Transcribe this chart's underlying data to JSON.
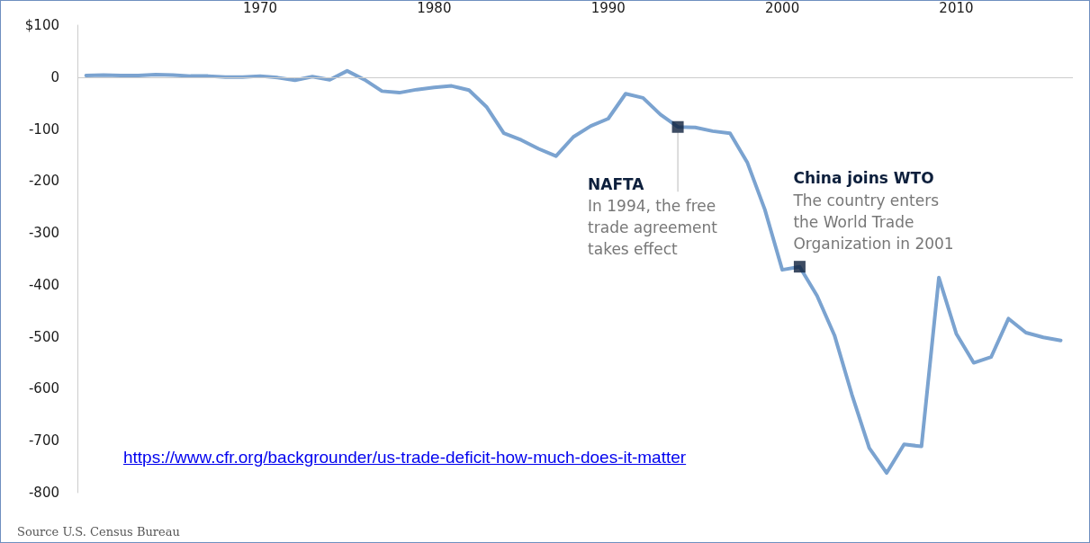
{
  "chart_data": {
    "type": "line",
    "x": [
      1960,
      1961,
      1962,
      1963,
      1964,
      1965,
      1966,
      1967,
      1968,
      1969,
      1970,
      1971,
      1972,
      1973,
      1974,
      1975,
      1976,
      1977,
      1978,
      1979,
      1980,
      1981,
      1982,
      1983,
      1984,
      1985,
      1986,
      1987,
      1988,
      1989,
      1990,
      1991,
      1992,
      1993,
      1994,
      1995,
      1996,
      1997,
      1998,
      1999,
      2000,
      2001,
      2002,
      2003,
      2004,
      2005,
      2006,
      2007,
      2008,
      2009,
      2010,
      2011,
      2012,
      2013,
      2014,
      2015,
      2016
    ],
    "series": [
      {
        "color": "#7ba3d0",
        "values": [
          3,
          4,
          3,
          3,
          5,
          4,
          2,
          2,
          0,
          0,
          2,
          -1,
          -6,
          1,
          -5,
          12,
          -5,
          -27,
          -30,
          -24,
          -20,
          -17,
          -25,
          -57,
          -108,
          -121,
          -138,
          -152,
          -115,
          -94,
          -80,
          -32,
          -40,
          -72,
          -96,
          -97,
          -104,
          -108,
          -165,
          -255,
          -371,
          -365,
          -421,
          -497,
          -611,
          -714,
          -762,
          -707,
          -711,
          -386,
          -494,
          -550,
          -539,
          -465,
          -492,
          -501,
          -507
        ]
      },
      {
        "type": "scatter",
        "marker": "square",
        "color": "#0d1f3c",
        "x": [
          1994,
          2001
        ],
        "values": [
          -96,
          -365
        ]
      }
    ],
    "xlim": [
      1959.5,
      2016.7
    ],
    "xticks": [
      1970,
      1980,
      1990,
      2000,
      2010
    ],
    "ylim": [
      -800,
      100
    ],
    "yticks": [
      -800,
      -700,
      -600,
      -500,
      -400,
      -300,
      -200,
      -100,
      0,
      {
        "value": 100,
        "label": "$100"
      }
    ],
    "ref_lines": [
      {
        "axis": "y",
        "value": 0,
        "color": "#cccccc"
      }
    ],
    "marker": "none",
    "line_style": "solid",
    "annotations": [
      {
        "text": "NAFTA\nIn 1994, the free\ntrade agreement\ntakes effect",
        "x": 1994,
        "y": -96
      },
      {
        "text": "China joins WTO\nThe country enters\nthe World Trade\nOrganization in 2001",
        "x": 2001,
        "y": -365
      },
      "https://www.cfr.org/backgrounder/us-trade-deficit-how-much-does-it-matter",
      "Source U.S. Census Bureau"
    ]
  }
}
